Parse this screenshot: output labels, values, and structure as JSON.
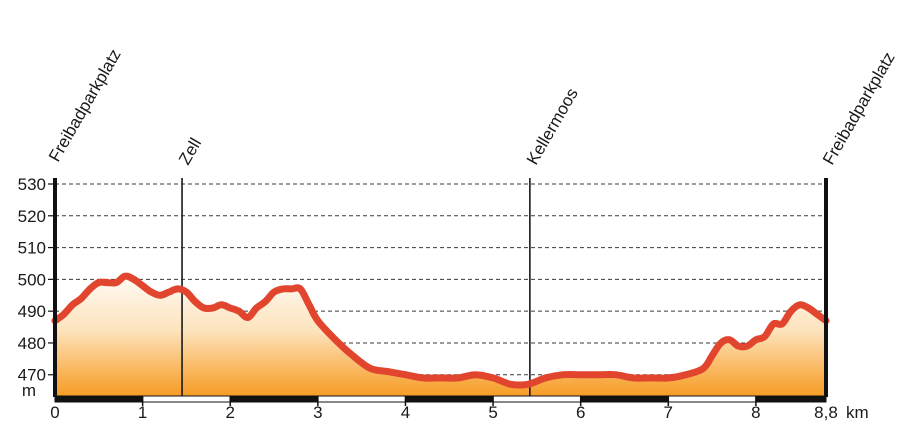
{
  "chart_data": {
    "type": "area",
    "y_unit": "m",
    "x_unit": "km",
    "xlim": [
      0,
      8.8
    ],
    "ylim": [
      463,
      530
    ],
    "y_ticks": [
      470,
      480,
      490,
      500,
      510,
      520,
      530
    ],
    "y_tick_labels": [
      "470",
      "480",
      "490",
      "500",
      "510",
      "520",
      "530"
    ],
    "x_ticks": [
      0,
      1,
      2,
      3,
      4,
      5,
      6,
      7,
      8,
      8.8
    ],
    "x_tick_labels": [
      "0",
      "1",
      "2",
      "3",
      "4",
      "5",
      "6",
      "7",
      "8",
      "8,8"
    ],
    "grid": true,
    "waypoints": [
      {
        "name": "Freibadparkplatz",
        "km": 0
      },
      {
        "name": "Zell",
        "km": 1.45
      },
      {
        "name": "Kellermoos",
        "km": 5.42
      },
      {
        "name": "Freibadparkplatz",
        "km": 8.8
      }
    ],
    "x": [
      0,
      0.1,
      0.2,
      0.3,
      0.4,
      0.5,
      0.6,
      0.7,
      0.8,
      0.9,
      1.0,
      1.1,
      1.2,
      1.3,
      1.4,
      1.5,
      1.6,
      1.7,
      1.8,
      1.9,
      2.0,
      2.1,
      2.2,
      2.3,
      2.4,
      2.5,
      2.6,
      2.7,
      2.8,
      2.9,
      3.0,
      3.2,
      3.4,
      3.6,
      3.8,
      4.0,
      4.2,
      4.4,
      4.6,
      4.8,
      5.0,
      5.2,
      5.4,
      5.6,
      5.8,
      6.0,
      6.2,
      6.4,
      6.6,
      6.8,
      7.0,
      7.2,
      7.4,
      7.5,
      7.6,
      7.7,
      7.8,
      7.9,
      8.0,
      8.1,
      8.2,
      8.3,
      8.4,
      8.5,
      8.6,
      8.7,
      8.8
    ],
    "y": [
      487,
      489,
      492,
      494,
      497,
      499,
      499,
      499,
      501,
      500,
      498,
      496,
      495,
      496,
      497,
      496,
      493,
      491,
      491,
      492,
      491,
      490,
      488,
      491,
      493,
      496,
      497,
      497,
      497,
      492,
      487,
      481,
      476,
      472,
      471,
      470,
      469,
      469,
      469,
      470,
      469,
      467,
      467,
      469,
      470,
      470,
      470,
      470,
      469,
      469,
      469,
      470,
      472,
      476,
      480,
      481,
      479,
      479,
      481,
      482,
      486,
      486,
      490,
      492,
      491,
      489,
      487
    ]
  },
  "axis": {
    "y_unit_label": "m",
    "x_unit_label": "km"
  }
}
